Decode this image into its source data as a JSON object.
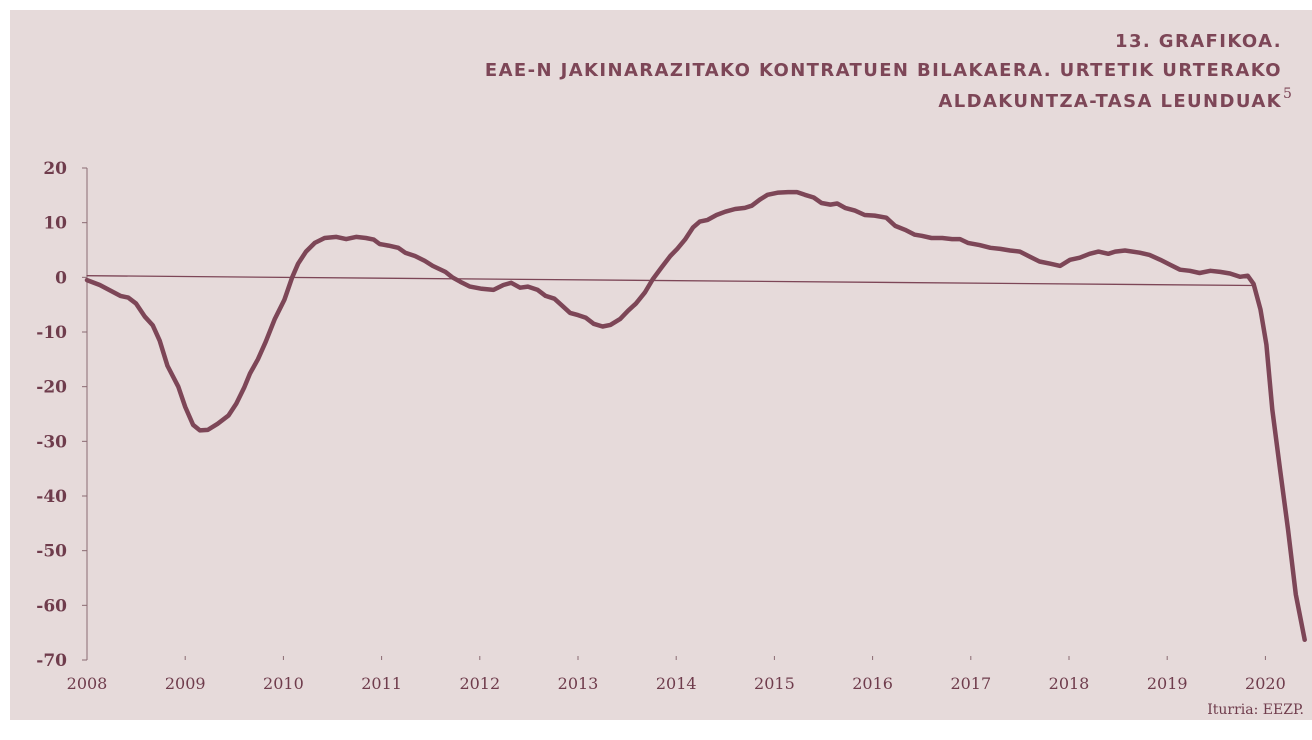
{
  "chart_data": {
    "type": "line",
    "title": [
      "13. GRAFIKOA.",
      "EAE-N JAKINARAZITAKO KONTRATUEN BILAKAERA. URTETIK URTERAKO",
      "ALDAKUNTZA-TASA LEUNDUAK"
    ],
    "title_note": "5",
    "source": "Iturria: EEZP.",
    "xlim": [
      2008,
      2020.42
    ],
    "xticks": [
      2008,
      2009,
      2010,
      2011,
      2012,
      2013,
      2014,
      2015,
      2016,
      2017,
      2018,
      2019,
      2020
    ],
    "ylim": [
      -70,
      20
    ],
    "yticks": [
      20,
      10,
      0,
      -10,
      -20,
      -30,
      -40,
      -50,
      -60,
      -70
    ],
    "series": [
      {
        "color": "#7d4657",
        "width": 4.5,
        "x": [
          2008.0,
          2008.13,
          2008.34,
          2008.42,
          2008.5,
          2008.59,
          2008.67,
          2008.74,
          2008.82,
          2008.93,
          2009.0,
          2009.08,
          2009.15,
          2009.23,
          2009.33,
          2009.44,
          2009.52,
          2009.6,
          2009.66,
          2009.74,
          2009.82,
          2009.91,
          2010.01,
          2010.09,
          2010.15,
          2010.23,
          2010.32,
          2010.42,
          2010.54,
          2010.64,
          2010.74,
          2010.84,
          2010.92,
          2010.98,
          2011.07,
          2011.17,
          2011.24,
          2011.34,
          2011.44,
          2011.52,
          2011.65,
          2011.72,
          2011.8,
          2011.9,
          2012.02,
          2012.14,
          2012.24,
          2012.32,
          2012.41,
          2012.49,
          2012.59,
          2012.67,
          2012.76,
          2012.84,
          2012.92,
          2013.0,
          2013.08,
          2013.16,
          2013.25,
          2013.33,
          2013.43,
          2013.51,
          2013.59,
          2013.68,
          2013.76,
          2013.85,
          2013.94,
          2014.01,
          2014.09,
          2014.17,
          2014.24,
          2014.32,
          2014.41,
          2014.5,
          2014.6,
          2014.7,
          2014.77,
          2014.85,
          2014.93,
          2015.04,
          2015.14,
          2015.23,
          2015.31,
          2015.4,
          2015.48,
          2015.57,
          2015.64,
          2015.72,
          2015.82,
          2015.92,
          2016.02,
          2016.14,
          2016.23,
          2016.33,
          2016.43,
          2016.5,
          2016.6,
          2016.71,
          2016.81,
          2016.89,
          2016.97,
          2017.09,
          2017.2,
          2017.3,
          2017.4,
          2017.5,
          2017.6,
          2017.7,
          2017.81,
          2017.91,
          2018.01,
          2018.11,
          2018.21,
          2018.3,
          2018.4,
          2018.47,
          2018.57,
          2018.72,
          2018.82,
          2018.93,
          2019.03,
          2019.13,
          2019.23,
          2019.33,
          2019.44,
          2019.54,
          2019.64,
          2019.74,
          2019.82,
          2019.88,
          2019.95,
          2020.01,
          2020.07,
          2020.15,
          2020.23,
          2020.31,
          2020.4
        ],
        "values": [
          -0.5,
          -1.4,
          -3.4,
          -3.7,
          -4.8,
          -7.2,
          -8.8,
          -11.6,
          -16.2,
          -20,
          -23.7,
          -27,
          -28,
          -27.9,
          -26.8,
          -25.3,
          -23.1,
          -20.2,
          -17.6,
          -15,
          -11.8,
          -7.7,
          -4.1,
          0,
          2.5,
          4.7,
          6.3,
          7.2,
          7.4,
          7,
          7.4,
          7.2,
          6.9,
          6.1,
          5.8,
          5.4,
          4.5,
          3.9,
          3,
          2.1,
          1,
          0,
          -0.8,
          -1.7,
          -2.1,
          -2.3,
          -1.4,
          -1,
          -1.9,
          -1.7,
          -2.3,
          -3.4,
          -3.9,
          -5.2,
          -6.5,
          -6.9,
          -7.4,
          -8.5,
          -9,
          -8.7,
          -7.6,
          -6.1,
          -4.8,
          -2.8,
          -0.4,
          1.8,
          3.9,
          5.2,
          6.9,
          9.1,
          10.2,
          10.5,
          11.4,
          12,
          12.5,
          12.7,
          13.1,
          14.2,
          15.1,
          15.5,
          15.6,
          15.6,
          15.1,
          14.6,
          13.6,
          13.3,
          13.5,
          12.7,
          12.2,
          11.4,
          11.3,
          10.9,
          9.4,
          8.7,
          7.8,
          7.6,
          7.2,
          7.2,
          7,
          7,
          6.3,
          5.9,
          5.4,
          5.2,
          4.9,
          4.7,
          3.8,
          2.9,
          2.5,
          2.1,
          3.2,
          3.6,
          4.3,
          4.7,
          4.3,
          4.7,
          4.9,
          4.5,
          4.1,
          3.2,
          2.3,
          1.4,
          1.2,
          0.8,
          1.2,
          1,
          0.7,
          0.1,
          0.3,
          -1.2,
          -5.9,
          -12.3,
          -24.2,
          -35.2,
          -46.1,
          -58,
          -66.3
        ]
      },
      {
        "color": "#7d4657",
        "width": 1.3,
        "x": [
          2008.0,
          2019.89
        ],
        "values": [
          0.3,
          -1.5
        ]
      }
    ]
  }
}
